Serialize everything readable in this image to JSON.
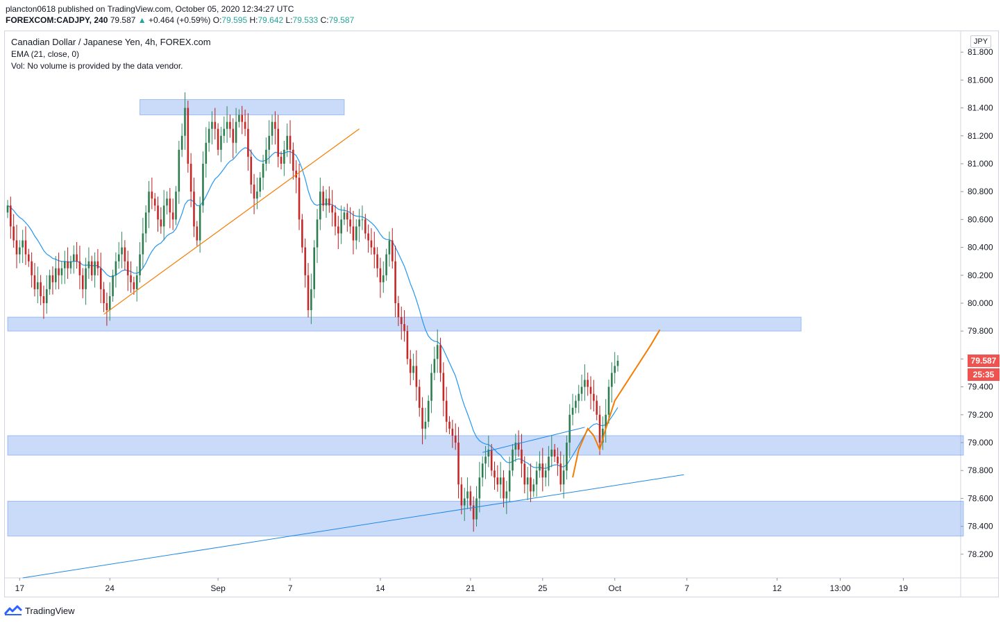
{
  "header": {
    "publisher_line": "plancton0618 published on TradingView.com, October 05, 2020 12:34:27 UTC",
    "symbol": "FOREXCOM:CADJPY, 240",
    "last": "79.587",
    "arrow": "▲",
    "change": "+0.464 (+0.59%)",
    "o_label": "O:",
    "o_val": "79.595",
    "h_label": "H:",
    "h_val": "79.642",
    "l_label": "L:",
    "l_val": "79.533",
    "c_label": "C:",
    "c_val": "79.587"
  },
  "legend": {
    "title": "Canadian Dollar / Japanese Yen, 4h, FOREX.com",
    "indicator": "EMA (21, close, 0)",
    "volume_note": "Vol: No volume is provided by the data vendor."
  },
  "currency": "JPY",
  "footer": {
    "brand": "TradingView"
  },
  "colors": {
    "up": "#26a69a",
    "down": "#ef5350",
    "ema": "#2196f3",
    "orange": "#f57c00",
    "zone": "rgba(101,151,237,0.35)",
    "trend_blue": "#1e88e5",
    "price_label": "#ef5350"
  },
  "chart_data": {
    "type": "candlestick",
    "title": "Canadian Dollar / Japanese Yen, 4h, FOREX.com",
    "ylim": [
      78.03,
      81.95
    ],
    "y_ticks": [
      "81.800",
      "81.600",
      "81.400",
      "81.200",
      "81.000",
      "80.800",
      "80.600",
      "80.400",
      "80.200",
      "80.000",
      "79.800",
      "79.600",
      "79.400",
      "79.200",
      "79.000",
      "78.800",
      "78.600",
      "78.400",
      "78.200"
    ],
    "x_ticks": [
      {
        "label": "17",
        "i": 4
      },
      {
        "label": "24",
        "i": 34
      },
      {
        "label": "Sep",
        "i": 70
      },
      {
        "label": "7",
        "i": 94
      },
      {
        "label": "14",
        "i": 124
      },
      {
        "label": "21",
        "i": 154
      },
      {
        "label": "25",
        "i": 178
      },
      {
        "label": "Oct",
        "i": 202
      },
      {
        "label": "7",
        "i": 226
      },
      {
        "label": "12",
        "i": 256
      },
      {
        "label": "13:00",
        "i": 277
      },
      {
        "label": "19",
        "i": 298
      }
    ],
    "x_range": [
      0,
      318
    ],
    "last_price": "79.587",
    "countdown": "25:35",
    "key_levels": [
      79.9,
      79.0,
      78.45
    ],
    "ema_period": 21,
    "closes": [
      80.7,
      80.55,
      80.45,
      80.35,
      80.4,
      80.45,
      80.35,
      80.3,
      80.2,
      80.1,
      80.15,
      80.05,
      80.0,
      80.1,
      80.2,
      80.15,
      80.25,
      80.2,
      80.25,
      80.3,
      80.25,
      80.3,
      80.35,
      80.3,
      80.2,
      80.1,
      80.25,
      80.3,
      80.2,
      80.3,
      80.25,
      80.1,
      80.0,
      79.95,
      80.05,
      80.2,
      80.3,
      80.35,
      80.4,
      80.3,
      80.2,
      80.15,
      80.1,
      80.2,
      80.35,
      80.5,
      80.65,
      80.8,
      80.75,
      80.7,
      80.6,
      80.55,
      80.7,
      80.75,
      80.65,
      80.6,
      80.8,
      81.1,
      81.2,
      81.4,
      81.0,
      80.8,
      80.55,
      80.45,
      80.7,
      81.0,
      81.15,
      81.25,
      81.3,
      81.25,
      81.1,
      81.2,
      81.25,
      81.3,
      81.25,
      81.15,
      81.3,
      81.35,
      81.3,
      81.25,
      81.05,
      80.85,
      80.75,
      80.8,
      80.9,
      81.0,
      81.1,
      81.2,
      81.3,
      81.25,
      81.05,
      81.0,
      81.1,
      81.2,
      81.1,
      80.95,
      80.9,
      80.6,
      80.4,
      80.2,
      79.95,
      80.1,
      80.4,
      80.6,
      80.8,
      80.7,
      80.75,
      80.7,
      80.65,
      80.55,
      80.5,
      80.6,
      80.65,
      80.6,
      80.55,
      80.45,
      80.55,
      80.6,
      80.6,
      80.5,
      80.45,
      80.4,
      80.35,
      80.25,
      80.15,
      80.2,
      80.35,
      80.45,
      80.3,
      80.0,
      79.9,
      79.85,
      79.8,
      79.6,
      79.5,
      79.55,
      79.4,
      79.25,
      79.1,
      79.15,
      79.3,
      79.5,
      79.6,
      79.7,
      79.5,
      79.3,
      79.15,
      79.1,
      79.05,
      79.0,
      78.7,
      78.55,
      78.6,
      78.65,
      78.55,
      78.45,
      78.6,
      78.75,
      78.85,
      78.9,
      78.95,
      78.8,
      78.75,
      78.7,
      78.75,
      78.6,
      78.65,
      78.8,
      78.95,
      79.0,
      78.95,
      78.85,
      78.7,
      78.75,
      78.65,
      78.7,
      78.8,
      78.85,
      78.75,
      78.8,
      78.9,
      78.95,
      78.9,
      78.85,
      78.7,
      78.8,
      79.0,
      79.2,
      79.25,
      79.3,
      79.35,
      79.4,
      79.45,
      79.4,
      79.35,
      79.3,
      79.2,
      79.0,
      79.1,
      79.2,
      79.4,
      79.5,
      79.55,
      79.587
    ]
  }
}
